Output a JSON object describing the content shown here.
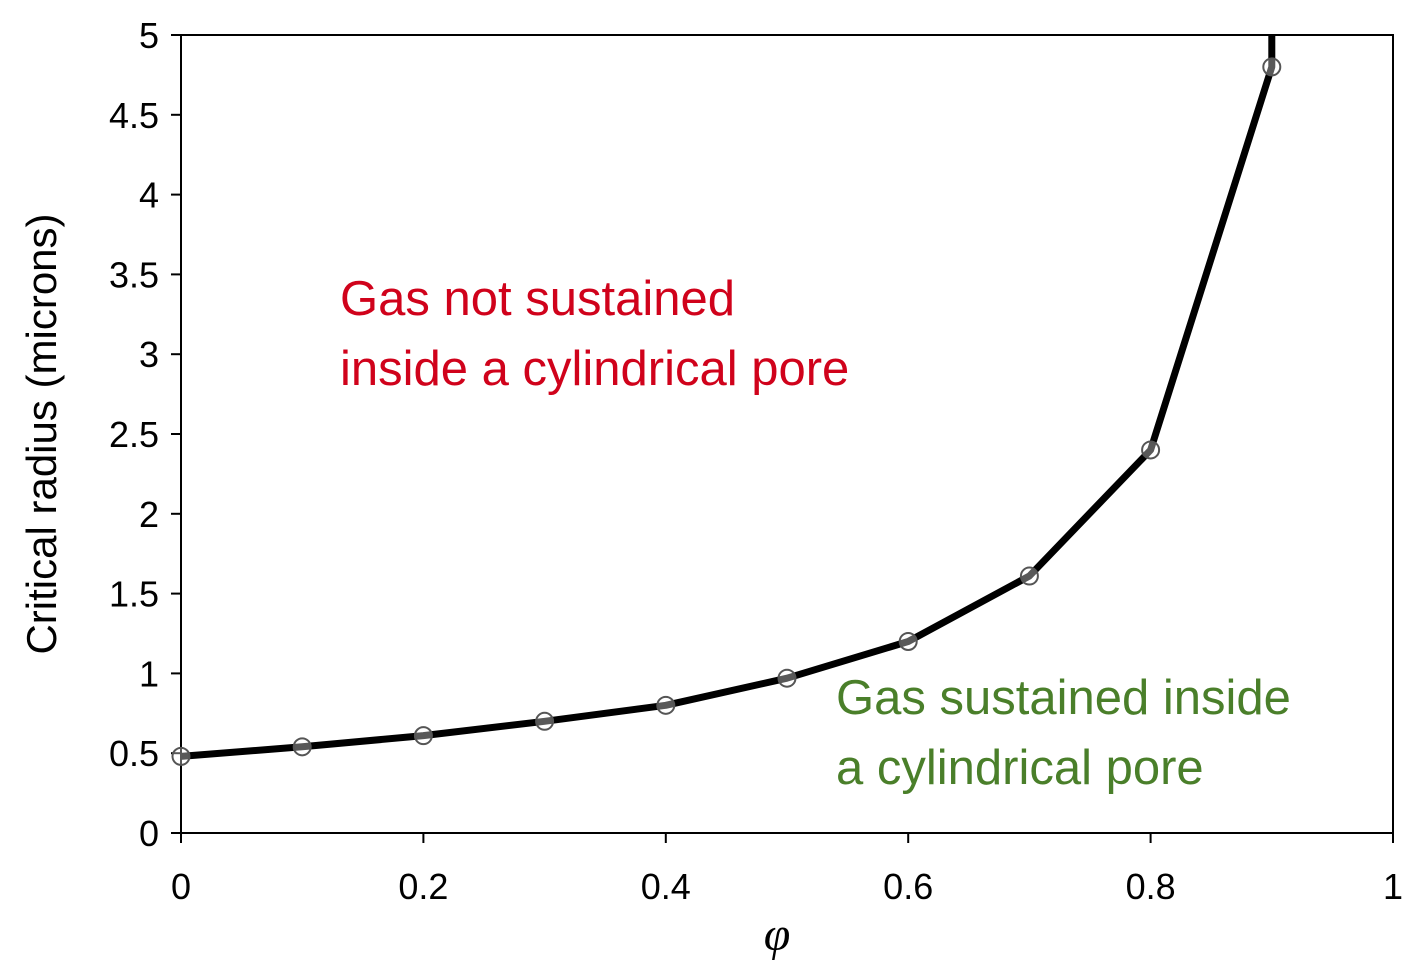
{
  "chart_data": {
    "type": "line",
    "title": "",
    "xlabel": "φ",
    "ylabel": "Critical radius (microns)",
    "xlim": [
      0,
      1
    ],
    "ylim": [
      0,
      5
    ],
    "x_ticks": [
      "0",
      "0.2",
      "0.4",
      "0.6",
      "0.8",
      "1"
    ],
    "y_ticks": [
      "0",
      "0.5",
      "1",
      "1.5",
      "2",
      "2.5",
      "3",
      "3.5",
      "4",
      "4.5",
      "5"
    ],
    "grid": false,
    "legend": "none",
    "series": [
      {
        "x": [
          0,
          0.1,
          0.2,
          0.3,
          0.4,
          0.5,
          0.6,
          0.7,
          0.8,
          0.9
        ],
        "y": [
          0.48,
          0.54,
          0.61,
          0.7,
          0.8,
          0.97,
          1.2,
          1.61,
          2.4,
          4.8
        ],
        "line_color": "#000000",
        "marker": "open-circle",
        "curve_extends_to": {
          "x": 0.9,
          "y": 5
        }
      }
    ],
    "annotations": [
      {
        "lines": [
          "Gas not sustained",
          "inside a cylindrical pore"
        ],
        "color": "#d0021b"
      },
      {
        "lines": [
          "Gas sustained inside",
          "a cylindrical pore"
        ],
        "color": "#4a7f2a"
      }
    ]
  }
}
